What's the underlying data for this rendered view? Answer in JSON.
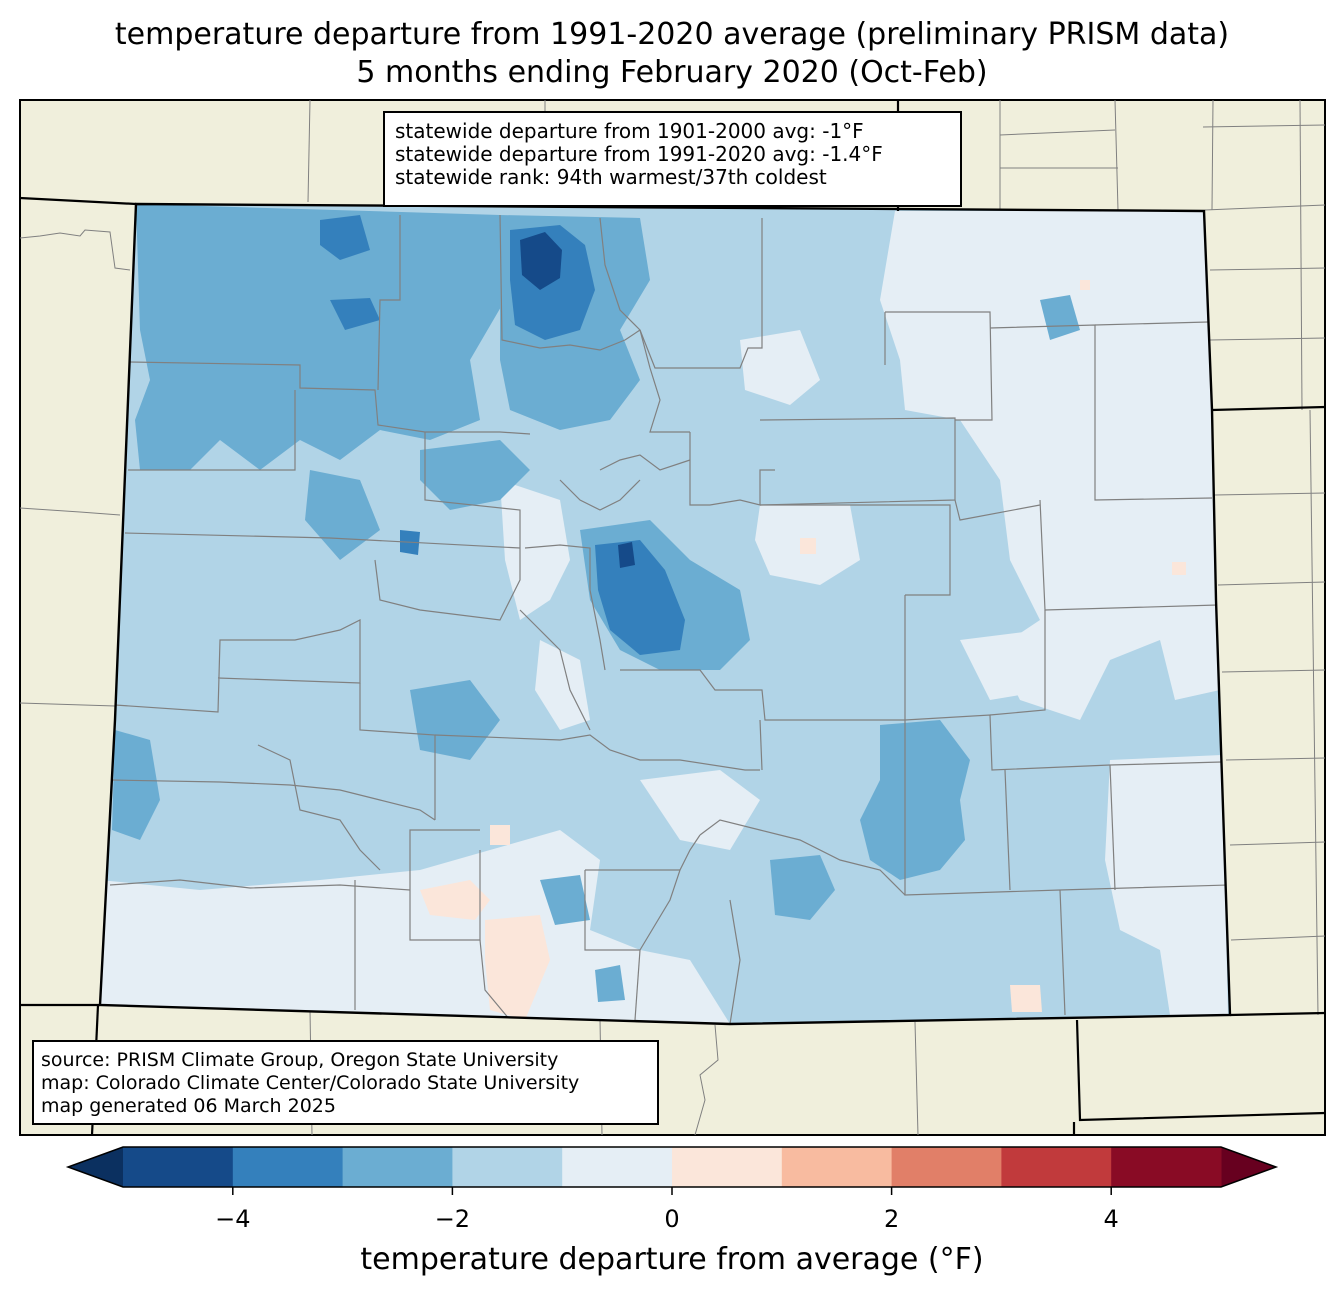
{
  "title": {
    "line1": "temperature departure from 1991-2020 average (preliminary PRISM data)",
    "line2": "5 months ending February 2020 (Oct-Feb)"
  },
  "stats": {
    "line1": "statewide departure from 1901-2000 avg: -1°F",
    "line2": "statewide departure from 1991-2020 avg: -1.4°F",
    "line3": "statewide rank: 94th warmest/37th coldest"
  },
  "source": {
    "line1": "source: PRISM Climate Group, Oregon State University",
    "line2": "map: Colorado Climate Center/Colorado State University",
    "line3": "map generated 06 March 2025"
  },
  "colorbar": {
    "label": "temperature departure from average (°F)",
    "ticks": [
      {
        "value": -4,
        "text": "−4"
      },
      {
        "value": -2,
        "text": "−2"
      },
      {
        "value": 0,
        "text": "0"
      },
      {
        "value": 2,
        "text": "2"
      },
      {
        "value": 4,
        "text": "4"
      }
    ],
    "range": [
      -5,
      5
    ],
    "bins": [
      {
        "from": -5,
        "to": -4,
        "color": "#154a89"
      },
      {
        "from": -4,
        "to": -3,
        "color": "#3480bc"
      },
      {
        "from": -3,
        "to": -2,
        "color": "#6badd2"
      },
      {
        "from": -2,
        "to": -1,
        "color": "#b1d4e7"
      },
      {
        "from": -1,
        "to": 0,
        "color": "#e5eef5"
      },
      {
        "from": 0,
        "to": 1,
        "color": "#fbe6da"
      },
      {
        "from": 1,
        "to": 2,
        "color": "#f8bba0"
      },
      {
        "from": 2,
        "to": 3,
        "color": "#e17f68"
      },
      {
        "from": 3,
        "to": 4,
        "color": "#c13a3c"
      },
      {
        "from": 4,
        "to": 5,
        "color": "#890b25"
      }
    ],
    "under_color": "#0b3060",
    "over_color": "#67001f"
  },
  "colors": {
    "land": "#f0efdc",
    "state_border": "#000000",
    "county_border": "#808080"
  }
}
